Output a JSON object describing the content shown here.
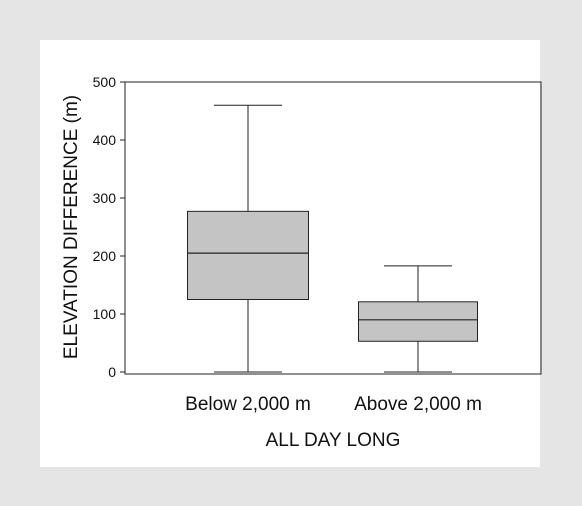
{
  "chart_data": {
    "type": "box",
    "title": "",
    "xlabel": "ALL DAY LONG",
    "ylabel": "ELEVATION DIFFERENCE (m)",
    "ylim": [
      0,
      500
    ],
    "yticks": [
      0,
      100,
      200,
      300,
      400,
      500
    ],
    "grid": false,
    "categories": [
      "Below 2,000 m",
      "Above 2,000 m"
    ],
    "boxes": [
      {
        "category": "Below 2,000 m",
        "min": 0,
        "q1": 125,
        "median": 205,
        "q3": 277,
        "max": 460
      },
      {
        "category": "Above 2,000 m",
        "min": 0,
        "q1": 53,
        "median": 90,
        "q3": 121,
        "max": 183
      }
    ],
    "colors": {
      "box_fill": "#c4c4c4",
      "line": "#222222"
    }
  }
}
